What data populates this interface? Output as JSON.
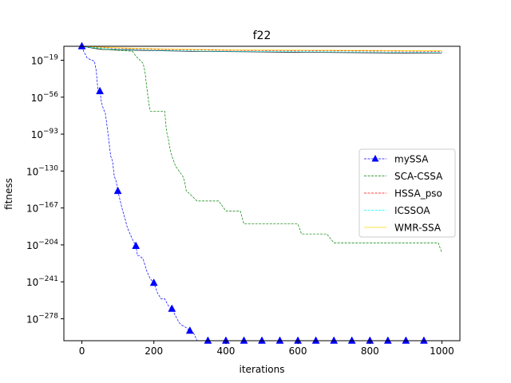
{
  "chart_data": {
    "type": "line",
    "title": "f22",
    "xlabel": "iterations",
    "ylabel": "fitness",
    "y_scale": "log10",
    "xlim": [
      -50,
      1050
    ],
    "ylim_exponent": [
      -300,
      -5
    ],
    "x_ticks": [
      0,
      200,
      400,
      600,
      800,
      1000
    ],
    "x_tick_labels": [
      "0",
      "200",
      "400",
      "600",
      "800",
      "1000"
    ],
    "y_ticks_exponent": [
      -19,
      -56,
      -93,
      -130,
      -167,
      -204,
      -241,
      -278
    ],
    "y_tick_labels": [
      {
        "base": "10",
        "exp": "−19"
      },
      {
        "base": "10",
        "exp": "−56"
      },
      {
        "base": "10",
        "exp": "−93"
      },
      {
        "base": "10",
        "exp": "−130"
      },
      {
        "base": "10",
        "exp": "−167"
      },
      {
        "base": "10",
        "exp": "−204"
      },
      {
        "base": "10",
        "exp": "−241"
      },
      {
        "base": "10",
        "exp": "−278"
      }
    ],
    "grid": false,
    "legend_position": "center-right",
    "series": [
      {
        "name": "mySSA",
        "color": "#0000ff",
        "dash": "dashed",
        "marker": "triangle",
        "x": [
          0,
          5,
          15,
          35,
          40,
          45,
          50,
          55,
          60,
          65,
          70,
          75,
          80,
          85,
          90,
          95,
          100,
          110,
          115,
          120,
          125,
          130,
          140,
          150,
          155,
          160,
          170,
          180,
          190,
          200,
          210,
          220,
          230,
          240,
          250,
          260,
          270,
          280,
          290,
          300,
          310,
          320,
          330,
          340,
          350,
          360,
          1000
        ],
        "y": [
          -5,
          -10,
          -17,
          -20,
          -30,
          -50,
          -50,
          -62,
          -68,
          -72,
          -85,
          -100,
          -115,
          -120,
          -135,
          -140,
          -150,
          -165,
          -172,
          -178,
          -185,
          -190,
          -198,
          -205,
          -215,
          -215,
          -218,
          -230,
          -238,
          -242,
          -252,
          -258,
          -258,
          -265,
          -268,
          -275,
          -282,
          -285,
          -287,
          -290,
          -292,
          -300,
          -300,
          -300,
          -300,
          -300,
          -300
        ]
      },
      {
        "name": "SCA-CSSA",
        "color": "#008000",
        "dash": "dashed",
        "marker": "none",
        "x": [
          0,
          20,
          60,
          140,
          145,
          150,
          170,
          175,
          180,
          185,
          190,
          230,
          235,
          240,
          245,
          250,
          260,
          280,
          285,
          290,
          300,
          320,
          380,
          400,
          440,
          450,
          600,
          610,
          680,
          700,
          990,
          995,
          1000
        ],
        "y": [
          -5,
          -6,
          -8,
          -10,
          -12,
          -15,
          -22,
          -30,
          -45,
          -60,
          -70,
          -70,
          -90,
          -98,
          -108,
          -115,
          -125,
          -135,
          -140,
          -150,
          -153,
          -160,
          -160,
          -170,
          -170,
          -183,
          -183,
          -193,
          -193,
          -202,
          -202,
          -207,
          -212
        ]
      },
      {
        "name": "HSSA_pso",
        "color": "#ff0000",
        "dash": "dashed",
        "marker": "none",
        "x": [
          0,
          100,
          200,
          400,
          700,
          1000
        ],
        "y": [
          -5,
          -7,
          -8,
          -9,
          -9.5,
          -10
        ]
      },
      {
        "name": "ICSSOA",
        "color": "#00ffff",
        "dash": "dashed",
        "marker": "none",
        "x": [
          0,
          100,
          200,
          400,
          700,
          1000
        ],
        "y": [
          -5.5,
          -8,
          -9,
          -10,
          -10.5,
          -11
        ]
      },
      {
        "name": "WMR-SSA",
        "color": "#ffd700",
        "dash": "solid",
        "marker": "none",
        "x": [
          0,
          100,
          200,
          400,
          700,
          1000
        ],
        "y": [
          -5,
          -6.5,
          -7.5,
          -8.5,
          -9,
          -9.5
        ]
      },
      {
        "name": "",
        "color": "#000000",
        "dash": "solid",
        "marker": "none",
        "x": [
          0,
          50,
          150,
          300,
          600,
          1000
        ],
        "y": [
          -5,
          -8,
          -9,
          -10,
          -11,
          -12
        ]
      }
    ],
    "marker_x": [
      0,
      50,
      100,
      150,
      200,
      250,
      300,
      350,
      400,
      450,
      500,
      550,
      600,
      650,
      700,
      750,
      800,
      850,
      900,
      950
    ]
  }
}
